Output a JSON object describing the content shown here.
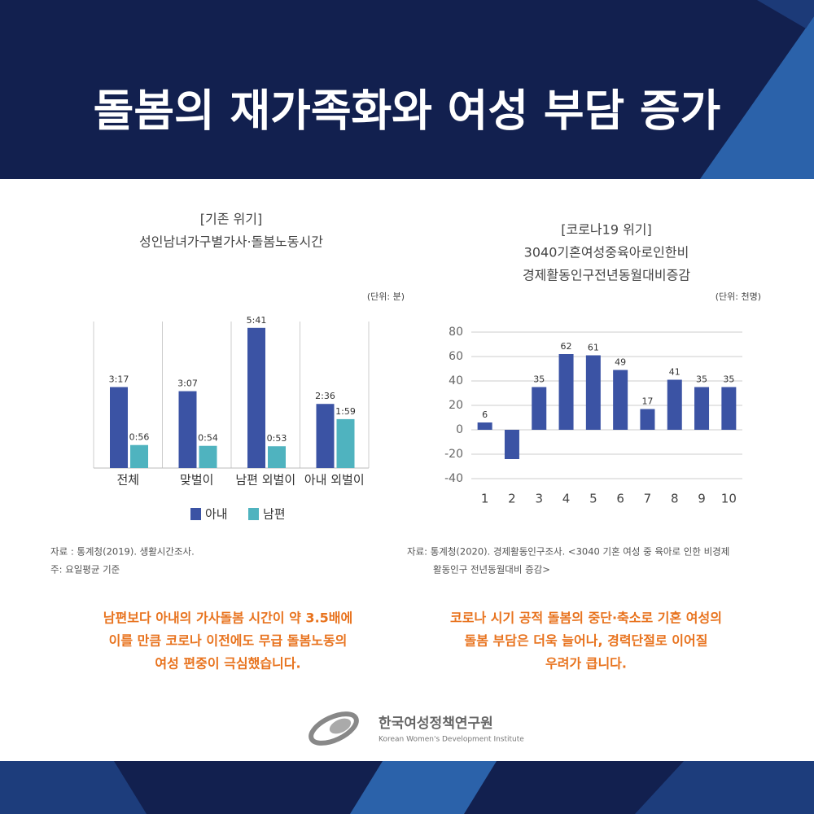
{
  "header": {
    "title": "돌봄의 재가족화와 여성 부담 증가"
  },
  "chart_data": [
    {
      "type": "grouped-bar",
      "title": "[기존 위기]",
      "subtitle": [
        "성인남녀가구별가사·돌봄노동시간"
      ],
      "unit": "(단위: 분)",
      "categories": [
        "전체",
        "맞벌이",
        "남편 외벌이",
        "아내 외벌이"
      ],
      "series": [
        {
          "name": "아내",
          "color": "#3b53a4",
          "values": [
            197,
            187,
            341,
            156
          ],
          "value_labels": [
            "3:17",
            "3:07",
            "5:41",
            "2:36"
          ]
        },
        {
          "name": "남편",
          "color": "#4fb3bf",
          "values": [
            56,
            54,
            53,
            119
          ],
          "value_labels": [
            "0:56",
            "0:54",
            "0:53",
            "1:59"
          ]
        }
      ],
      "legend": "bottom",
      "source": [
        "자료 : 통계청(2019). 생활시간조사.",
        "주: 요일평균 기준"
      ],
      "caption": [
        "남편보다 아내의 가사돌봄 시간이 약 3.5배에",
        "이를 만큼 코로나 이전에도 무급 돌봄노동의",
        "여성 편중이 극심했습니다."
      ]
    },
    {
      "type": "bar",
      "title": "[코로나19 위기]",
      "subtitle": [
        "3040기혼여성중육아로인한비",
        "경제활동인구전년동월대비증감"
      ],
      "unit": "(단위: 천명)",
      "categories": [
        "1",
        "2",
        "3",
        "4",
        "5",
        "6",
        "7",
        "8",
        "9",
        "10"
      ],
      "values": [
        6,
        -24,
        35,
        62,
        61,
        49,
        17,
        41,
        35,
        35
      ],
      "value_labels": [
        "6",
        null,
        "35",
        "62",
        "61",
        "49",
        "17",
        "41",
        "35",
        "35"
      ],
      "color": "#3b53a4",
      "ylim": [
        -40,
        80
      ],
      "yticks": [
        -40,
        -20,
        0,
        20,
        40,
        60,
        80
      ],
      "grid": true,
      "source": [
        "자료: 통계청(2020). 경제활동인구조사. <3040 기혼 여성 중 육아로 인한 비경제",
        "활동인구 전년동월대비 증감>"
      ],
      "caption": [
        "코로나 시기 공적 돌봄의 중단·축소로 기혼 여성의",
        "돌봄 부담은 더욱 늘어나, 경력단절로 이어질",
        "우려가 큽니다."
      ]
    }
  ],
  "footer": {
    "org": "한국여성정책연구원",
    "org_en": "Korean Women's Development Institute"
  }
}
